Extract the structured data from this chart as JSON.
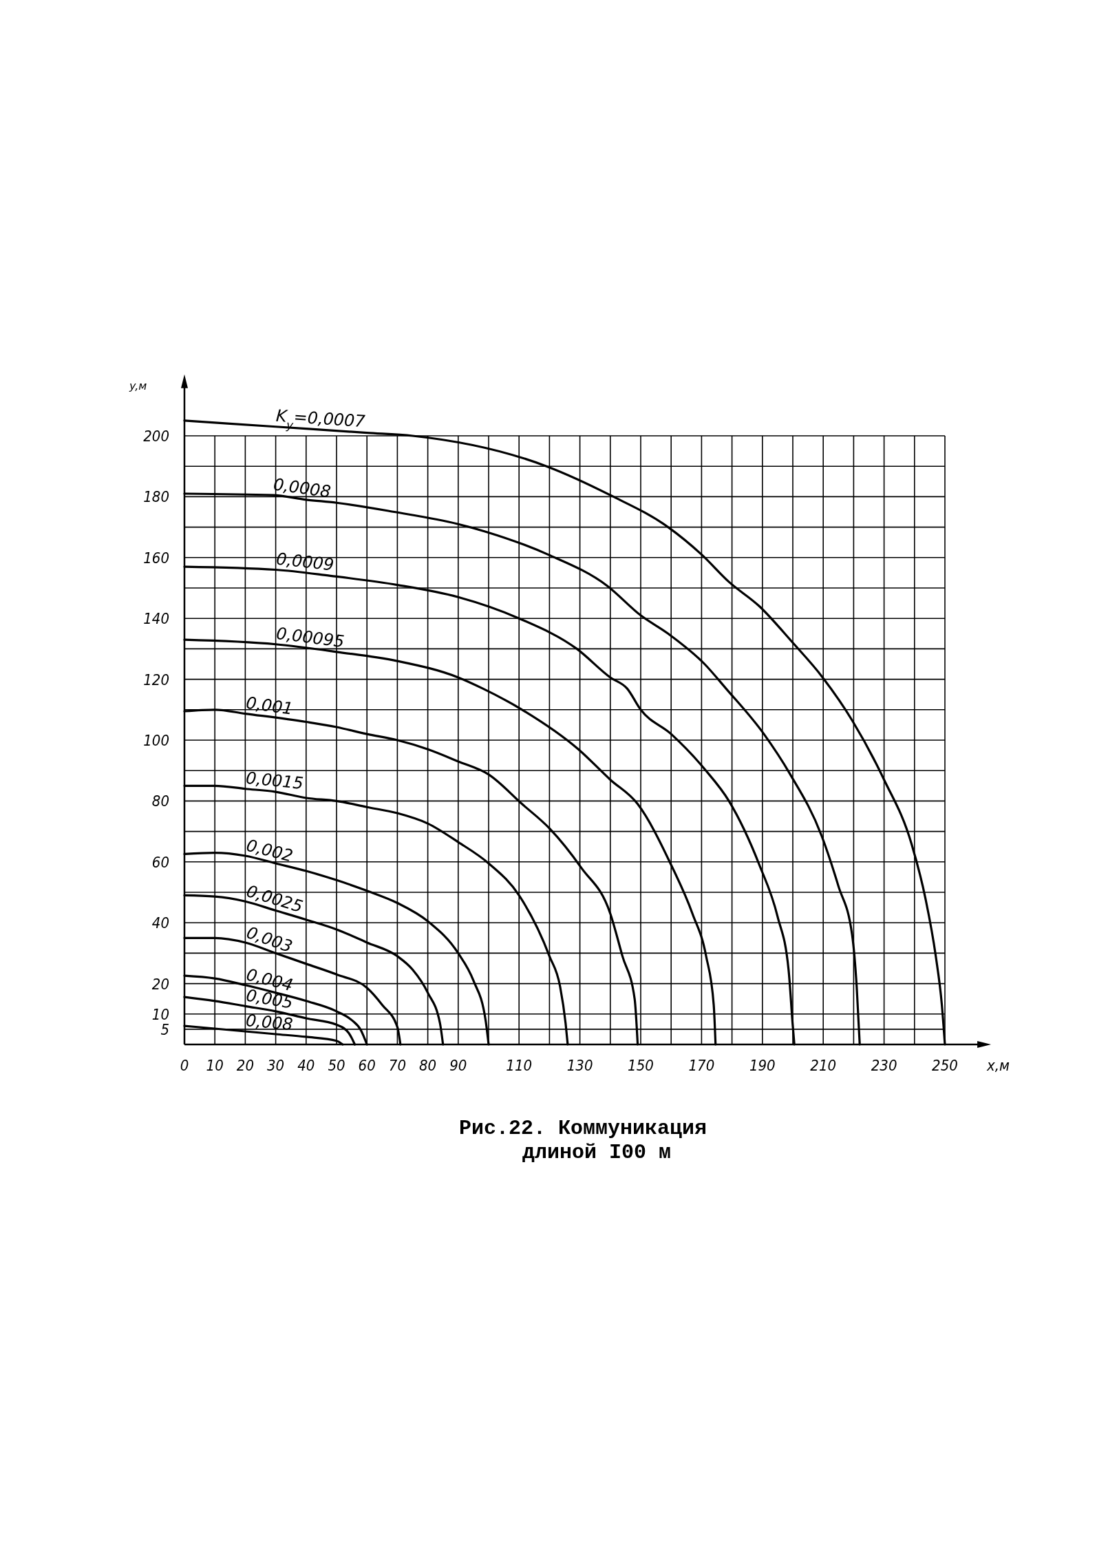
{
  "chart_data": {
    "type": "line",
    "title": "Рис.22. Коммуникация длиной I00 м",
    "xlabel": "x,м",
    "ylabel": "y,м",
    "xlim": [
      0,
      262
    ],
    "ylim": [
      0,
      217
    ],
    "xticks": [
      0,
      10,
      20,
      30,
      40,
      50,
      60,
      70,
      80,
      90,
      {
        "value": 100,
        "label": null
      },
      110,
      {
        "value": 120,
        "label": null
      },
      130,
      {
        "value": 140,
        "label": null
      },
      150,
      {
        "value": 160,
        "label": null
      },
      170,
      {
        "value": 180,
        "label": null
      },
      190,
      {
        "value": 200,
        "label": null
      },
      210,
      {
        "value": 220,
        "label": null
      },
      230,
      {
        "value": 240,
        "label": null
      },
      250
    ],
    "yticks": [
      5,
      10,
      20,
      {
        "value": 30,
        "label": null
      },
      40,
      {
        "value": 50,
        "label": null
      },
      60,
      {
        "value": 70,
        "label": null
      },
      80,
      {
        "value": 90,
        "label": null
      },
      100,
      {
        "value": 110,
        "label": null
      },
      120,
      {
        "value": 130,
        "label": null
      },
      140,
      {
        "value": 150,
        "label": null
      },
      160,
      {
        "value": 170,
        "label": null
      },
      180,
      {
        "value": 190,
        "label": null
      },
      200
    ],
    "grid": true,
    "marker": "none",
    "line_style": "solid",
    "series": [
      {
        "name": "K$_{y}$=0,0007",
        "color": "#000000",
        "x": [
          0,
          30,
          60,
          75,
          119,
          140,
          159,
          170,
          179,
          189,
          200,
          209.5,
          219.5,
          230,
          239,
          243.6,
          247,
          249,
          250
        ],
        "values": [
          205,
          203,
          201,
          200,
          190,
          180.5,
          170,
          161,
          152,
          144,
          132,
          121,
          106.5,
          87,
          66,
          48,
          29,
          13,
          0
        ]
      },
      {
        "name": "0,0008",
        "color": "#000000",
        "x": [
          0,
          29,
          40,
          50,
          69,
          90,
          99,
          119.5,
          139,
          150,
          159,
          171,
          178,
          190.5,
          199,
          209.5,
          215,
          219.5,
          221,
          222
        ],
        "values": [
          181,
          180.5,
          179,
          178,
          175,
          171,
          168.5,
          161,
          150.7,
          141,
          135,
          125,
          117,
          102,
          89,
          68.5,
          52,
          36,
          19,
          0
        ]
      },
      {
        "name": "0,0009",
        "color": "#000000",
        "x": [
          0,
          30,
          48,
          70,
          90,
          110,
          129,
          140,
          145.5,
          150,
          160,
          171,
          179,
          189,
          195,
          198.6,
          200,
          200.5
        ],
        "values": [
          157,
          156,
          154,
          151,
          147,
          140,
          130,
          120.6,
          117,
          110,
          102,
          90.5,
          80,
          59,
          42,
          24.6,
          6,
          0
        ]
      },
      {
        "name": "0,00095",
        "color": "#000000",
        "x": [
          0,
          30,
          50,
          70,
          90,
          98,
          111,
          129.5,
          140,
          149,
          160,
          167,
          171.5,
          174,
          174.6
        ],
        "values": [
          133,
          131.5,
          129,
          126,
          120.6,
          117,
          110,
          97,
          87,
          79,
          59,
          43,
          29,
          13,
          0
        ]
      },
      {
        "name": "0,001",
        "color": "#000000",
        "x": [
          0,
          10,
          20,
          40,
          50,
          60,
          70,
          80,
          90,
          100,
          111,
          120,
          130.5,
          140,
          144,
          148,
          149
        ],
        "values": [
          109.5,
          110,
          108.7,
          106,
          104.3,
          102,
          100,
          97,
          93,
          88.7,
          79,
          71,
          58,
          43,
          29,
          15,
          0
        ]
      },
      {
        "name": "0,0015",
        "color": "#000000",
        "x": [
          0,
          10,
          20,
          30,
          40,
          50,
          60,
          70,
          80,
          90,
          100,
          110,
          120,
          123.5,
          125.3,
          126
        ],
        "values": [
          85,
          85,
          84,
          83,
          81,
          80,
          78,
          76,
          72.6,
          66.5,
          59.5,
          49,
          29,
          19,
          7,
          0
        ]
      },
      {
        "name": "0,002",
        "color": "#000000",
        "x": [
          0,
          10,
          20,
          30,
          40,
          50,
          60,
          70,
          80,
          90,
          95,
          99,
          100
        ],
        "values": [
          62.6,
          63,
          62,
          59.5,
          57,
          54,
          50.5,
          46.5,
          40.5,
          30,
          21,
          8,
          0
        ]
      },
      {
        "name": "0,0025",
        "color": "#000000",
        "x": [
          0,
          10,
          20,
          30,
          40,
          50,
          60,
          70,
          75,
          80,
          84,
          85
        ],
        "values": [
          49,
          48.6,
          47,
          44,
          41,
          37.8,
          33.5,
          29,
          24.6,
          17,
          7,
          0
        ]
      },
      {
        "name": "0,003",
        "color": "#000000",
        "x": [
          0,
          10,
          20,
          30,
          40,
          50,
          60,
          65,
          70,
          71
        ],
        "values": [
          35,
          35,
          33.5,
          30,
          26.5,
          23,
          18.6,
          13,
          5.7,
          0
        ]
      },
      {
        "name": "0,004",
        "color": "#000000",
        "x": [
          0,
          10,
          20,
          30,
          40,
          50,
          55,
          58,
          60
        ],
        "values": [
          22.6,
          21.7,
          19.5,
          17,
          14.3,
          10.9,
          8,
          4.7,
          0
        ]
      },
      {
        "name": "0,005",
        "color": "#000000",
        "x": [
          0,
          10,
          20,
          30,
          40,
          50,
          54,
          56
        ],
        "values": [
          15.6,
          14.3,
          12.6,
          10.9,
          8.6,
          6.5,
          3.8,
          0
        ]
      },
      {
        "name": "0,008",
        "color": "#000000",
        "x": [
          0,
          10,
          20,
          30,
          40,
          50,
          52
        ],
        "values": [
          6.1,
          5.2,
          4.3,
          3.4,
          2.5,
          1.2,
          0
        ]
      }
    ]
  }
}
